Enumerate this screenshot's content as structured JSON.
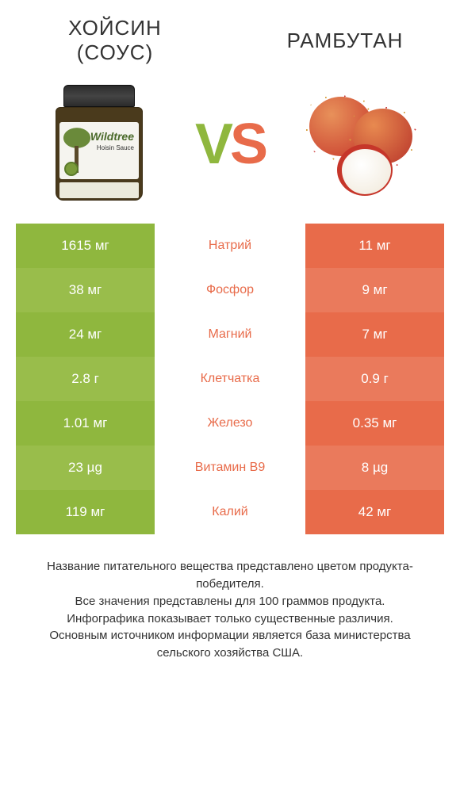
{
  "colors": {
    "left_primary": "#8fb73e",
    "left_alt": "#99bd4b",
    "right_primary": "#e86b4a",
    "right_alt": "#ea7a5c",
    "mid_label_left": "#e86b4a",
    "mid_label_right": "#8fb73e",
    "text": "#333333",
    "bg": "#ffffff"
  },
  "header": {
    "left_line1": "Хойсин",
    "left_line2": "(соус)",
    "right": "Рамбутан"
  },
  "jar": {
    "brand": "Wildtree",
    "sub": "Hoisin Sauce"
  },
  "vs": {
    "v": "V",
    "s": "S"
  },
  "rows": [
    {
      "left": "1615 мг",
      "label": "Натрий",
      "right": "11 мг",
      "winner": "left"
    },
    {
      "left": "38 мг",
      "label": "Фосфор",
      "right": "9 мг",
      "winner": "left"
    },
    {
      "left": "24 мг",
      "label": "Магний",
      "right": "7 мг",
      "winner": "left"
    },
    {
      "left": "2.8 г",
      "label": "Клетчатка",
      "right": "0.9 г",
      "winner": "left"
    },
    {
      "left": "1.01 мг",
      "label": "Железо",
      "right": "0.35 мг",
      "winner": "left"
    },
    {
      "left": "23 µg",
      "label": "Витамин B9",
      "right": "8 µg",
      "winner": "left"
    },
    {
      "left": "119 мг",
      "label": "Калий",
      "right": "42 мг",
      "winner": "left"
    }
  ],
  "footer": {
    "line1": "Название питательного вещества представлено цветом продукта-победителя.",
    "line2": "Все значения представлены для 100 граммов продукта.",
    "line3": "Инфографика показывает только существенные различия.",
    "line4": "Основным источником информации является база министерства сельского хозяйства США."
  }
}
